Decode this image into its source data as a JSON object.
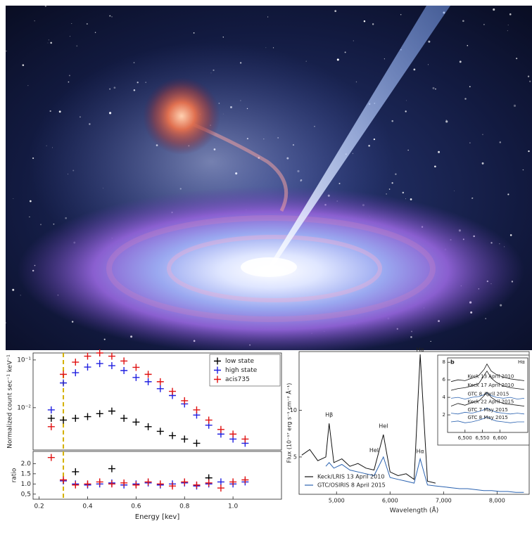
{
  "chart_data": [
    {
      "type": "scatter",
      "log_y": true,
      "ylabel": "Normalized count sec⁻¹ keV⁻¹",
      "xlim": [
        0.175,
        1.2
      ],
      "ylim": [
        0.0013,
        0.14
      ],
      "yticks": [
        {
          "value": 0.1,
          "label": "10⁻¹"
        },
        {
          "value": 0.01,
          "label": "10⁻²"
        }
      ],
      "vline": 0.3,
      "vline_color": "#d4b000",
      "legend": "upper right",
      "x": [
        0.25,
        0.3,
        0.35,
        0.4,
        0.45,
        0.5,
        0.55,
        0.6,
        0.65,
        0.7,
        0.75,
        0.8,
        0.85,
        0.9,
        0.95,
        1.0,
        1.05
      ],
      "series": [
        {
          "name": "low state",
          "color": "#000000",
          "values": [
            0.006,
            0.0055,
            0.006,
            0.0065,
            0.0075,
            0.0085,
            0.006,
            0.005,
            0.004,
            0.0032,
            0.0026,
            0.0022,
            0.0018,
            null,
            null,
            null,
            null
          ]
        },
        {
          "name": "high state",
          "color": "#1f1fe0",
          "values": [
            0.009,
            0.033,
            0.054,
            0.071,
            0.084,
            0.076,
            0.06,
            0.043,
            0.035,
            0.025,
            0.018,
            0.012,
            0.007,
            0.0043,
            0.0028,
            0.0022,
            0.0018
          ]
        },
        {
          "name": "acis735",
          "color": "#e01010",
          "values": [
            0.004,
            0.05,
            0.09,
            0.12,
            0.14,
            0.12,
            0.095,
            0.07,
            0.05,
            0.035,
            0.022,
            0.014,
            0.009,
            0.0055,
            0.0035,
            0.0028,
            0.0022
          ]
        }
      ]
    },
    {
      "type": "scatter",
      "ylabel": "ratio",
      "xlabel": "Energy [kev]",
      "xlim": [
        0.175,
        1.2
      ],
      "ylim": [
        0.25,
        2.6
      ],
      "xticks": [
        0.2,
        0.4,
        0.6,
        0.8,
        {
          "value": 1,
          "label": "1.0"
        }
      ],
      "yticks": [
        {
          "value": 0.5,
          "label": "0,5"
        },
        {
          "value": 1,
          "label": "1.0"
        },
        1.5,
        {
          "value": 2,
          "label": "2.0"
        }
      ],
      "vline": 0.3,
      "vline_color": "#d4b000",
      "x": [
        0.25,
        0.3,
        0.35,
        0.4,
        0.45,
        0.5,
        0.55,
        0.6,
        0.65,
        0.7,
        0.75,
        0.8,
        0.85,
        0.9,
        0.95,
        1.0,
        1.05
      ],
      "series": [
        {
          "color": "#000000",
          "values": [
            null,
            null,
            1.6,
            null,
            null,
            1.75,
            null,
            null,
            null,
            null,
            null,
            null,
            null,
            1.3,
            null,
            null,
            null
          ]
        },
        {
          "color": "#1f1fe0",
          "values": [
            null,
            1.15,
            1.0,
            0.95,
            1.0,
            1.05,
            0.95,
            1.0,
            1.05,
            0.95,
            1.0,
            1.05,
            0.9,
            1.0,
            1.1,
            1.0,
            1.1
          ]
        },
        {
          "color": "#e01010",
          "values": [
            2.3,
            1.2,
            0.95,
            1.0,
            1.1,
            1.0,
            1.05,
            0.95,
            1.1,
            1.0,
            0.9,
            1.1,
            0.95,
            1.05,
            0.8,
            1.1,
            1.2
          ]
        }
      ]
    },
    {
      "type": "line",
      "xlabel": "Wavelength (Å)",
      "ylabel": "Flux (10⁻¹⁷ erg s⁻¹ cm⁻² Å⁻¹)",
      "xlim": [
        4300,
        8600
      ],
      "ylim": [
        1,
        16.3
      ],
      "xticks": [
        {
          "value": 5000,
          "label": "5,000"
        },
        {
          "value": 6000,
          "label": "6,000"
        },
        {
          "value": 7000,
          "label": "7,000"
        },
        {
          "value": 8000,
          "label": "8,000"
        }
      ],
      "yticks": [
        5,
        10
      ],
      "legend": "lower left",
      "x": [
        4350,
        4500,
        4650,
        4800,
        4861,
        4950,
        5100,
        5250,
        5400,
        5550,
        5700,
        5876,
        6000,
        6150,
        6300,
        6450,
        6563,
        6700,
        6850,
        7000,
        7150,
        7300,
        7450,
        7600,
        7750,
        7900,
        8050,
        8200,
        8350,
        8500
      ],
      "series": [
        {
          "name": "Keck/LRIS 13 April 2010",
          "color": "#111111",
          "values": [
            5.2,
            5.8,
            4.6,
            5.0,
            8.6,
            4.4,
            4.8,
            4.0,
            4.3,
            3.8,
            3.6,
            7.4,
            3.4,
            3.0,
            3.2,
            2.6,
            16.0,
            2.4,
            2.2,
            null,
            null,
            null,
            null,
            null,
            null,
            null,
            null,
            null,
            null,
            null
          ]
        },
        {
          "name": "GTC/OSIRIS 8 April 2015",
          "color": "#2a62b0",
          "values": [
            null,
            null,
            null,
            4.0,
            4.4,
            3.8,
            4.2,
            3.6,
            3.4,
            3.2,
            3.0,
            5.0,
            2.8,
            2.6,
            2.4,
            2.2,
            4.8,
            2.0,
            1.9,
            1.8,
            1.7,
            1.6,
            1.6,
            1.5,
            1.4,
            1.4,
            1.3,
            1.3,
            1.2,
            1.2
          ]
        }
      ],
      "annotations": [
        {
          "text": "Hβ",
          "x": 4861,
          "y": 9.5,
          "color": "#111111"
        },
        {
          "text": "HeI",
          "x": 5876,
          "y": 8.3,
          "color": "#2a62b0"
        },
        {
          "text": "HeI",
          "x": 5700,
          "y": 5.7,
          "color": "#2a62b0"
        },
        {
          "text": "Hα",
          "x": 6563,
          "y": 5.6,
          "color": "#2a62b0"
        },
        {
          "text": "Hα",
          "x": 6563,
          "y": 16.5,
          "color": "#111111"
        }
      ]
    },
    {
      "type": "line",
      "panel": "b",
      "line_label": "Hα",
      "label_color": "#e0201b",
      "xlim": [
        6450,
        6680
      ],
      "ylim": [
        0,
        8.5
      ],
      "xticks": [
        {
          "value": 6500,
          "label": "6,500"
        },
        {
          "value": 6550,
          "label": "6,550"
        },
        {
          "value": 6600,
          "label": "6,600"
        }
      ],
      "yticks": [
        2,
        4,
        6,
        8
      ],
      "x": [
        6460,
        6480,
        6500,
        6520,
        6540,
        6555,
        6563,
        6575,
        6590,
        6610,
        6630,
        6650,
        6670
      ],
      "series": [
        {
          "name": "Keck 13 April 2010",
          "color": "#111111",
          "values": [
            5.8,
            6.0,
            5.9,
            6.2,
            6.5,
            7.2,
            7.8,
            7.0,
            6.6,
            6.3,
            6.1,
            6.0,
            5.9
          ]
        },
        {
          "name": "Keck 17 April 2010",
          "color": "#111111",
          "values": [
            4.8,
            5.0,
            5.1,
            5.3,
            5.6,
            6.5,
            7.0,
            6.2,
            5.7,
            5.3,
            5.1,
            5.0,
            4.9
          ]
        },
        {
          "name": "GTC 8 April 2015",
          "color": "#2a62b0",
          "values": [
            3.9,
            4.0,
            3.8,
            4.0,
            4.1,
            4.3,
            4.5,
            4.2,
            4.0,
            3.9,
            4.0,
            3.8,
            3.9
          ]
        },
        {
          "name": "Keck 22 April 2015",
          "color": "#111111",
          "values": [
            3.0,
            3.3,
            3.1,
            3.4,
            3.6,
            4.2,
            4.6,
            4.0,
            3.6,
            3.3,
            3.2,
            3.1,
            3.0
          ]
        },
        {
          "name": "GTC 7 May 2015",
          "color": "#2a62b0",
          "values": [
            2.2,
            2.1,
            2.3,
            2.2,
            2.4,
            2.6,
            2.8,
            2.5,
            2.3,
            2.2,
            2.1,
            2.2,
            2.1
          ]
        },
        {
          "name": "GTC 8 May 2015",
          "color": "#2a62b0",
          "values": [
            1.2,
            1.3,
            1.1,
            1.2,
            1.4,
            1.6,
            1.8,
            1.5,
            1.3,
            1.2,
            1.1,
            1.2,
            1.2
          ]
        }
      ]
    }
  ]
}
